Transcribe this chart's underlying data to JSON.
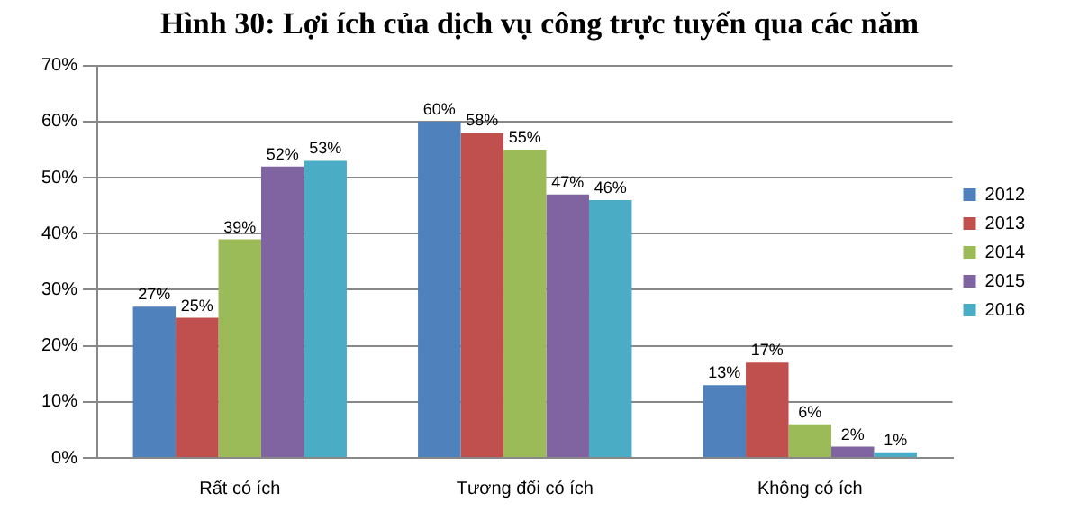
{
  "chart_data": {
    "type": "bar",
    "title": "Hình 30: Lợi ích của dịch vụ công trực tuyến qua các năm",
    "categories": [
      "Rất có ích",
      "Tương đối có ích",
      "Không có ích"
    ],
    "series": [
      {
        "name": "2012",
        "color": "#4f81bd",
        "values": [
          27,
          60,
          13
        ],
        "value_labels": [
          "27%",
          "60%",
          "13%"
        ]
      },
      {
        "name": "2013",
        "color": "#c0504d",
        "values": [
          25,
          58,
          17
        ],
        "value_labels": [
          "25%",
          "58%",
          "17%"
        ]
      },
      {
        "name": "2014",
        "color": "#9bbb59",
        "values": [
          39,
          55,
          6
        ],
        "value_labels": [
          "39%",
          "55%",
          "6%"
        ]
      },
      {
        "name": "2015",
        "color": "#8064a2",
        "values": [
          52,
          47,
          2
        ],
        "value_labels": [
          "52%",
          "47%",
          "2%"
        ]
      },
      {
        "name": "2016",
        "color": "#4bacc6",
        "values": [
          53,
          46,
          1
        ],
        "value_labels": [
          "53%",
          "46%",
          "1%"
        ]
      }
    ],
    "ylim": [
      0,
      70
    ],
    "yticks": [
      {
        "value": 0,
        "label": "0%"
      },
      {
        "value": 10,
        "label": "10%"
      },
      {
        "value": 20,
        "label": "20%"
      },
      {
        "value": 30,
        "label": "30%"
      },
      {
        "value": 40,
        "label": "40%"
      },
      {
        "value": 50,
        "label": "50%"
      },
      {
        "value": 60,
        "label": "60%"
      },
      {
        "value": 70,
        "label": "70%"
      }
    ],
    "grid": "y",
    "legend": "right"
  }
}
